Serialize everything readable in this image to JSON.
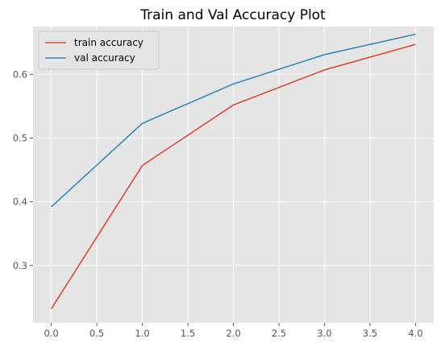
{
  "chart_data": {
    "type": "line",
    "title": "Train and Val Accuracy Plot",
    "xlabel": "",
    "ylabel": "",
    "x": [
      0,
      1,
      2,
      3,
      4
    ],
    "xlim": [
      -0.2,
      4.2
    ],
    "ylim": [
      0.21,
      0.675
    ],
    "xticks": [
      0.0,
      0.5,
      1.0,
      1.5,
      2.0,
      2.5,
      3.0,
      3.5,
      4.0
    ],
    "xtick_labels": [
      "0.0",
      "0.5",
      "1.0",
      "1.5",
      "2.0",
      "2.5",
      "3.0",
      "3.5",
      "4.0"
    ],
    "yticks": [
      0.3,
      0.4,
      0.5,
      0.6
    ],
    "ytick_labels": [
      "0.3",
      "0.4",
      "0.5",
      "0.6"
    ],
    "grid": true,
    "legend_position": "upper-left",
    "series": [
      {
        "name": "train accuracy",
        "color": "#E24A33",
        "values": [
          0.232,
          0.457,
          0.552,
          0.607,
          0.647
        ]
      },
      {
        "name": "val accuracy",
        "color": "#348ABD",
        "values": [
          0.392,
          0.523,
          0.585,
          0.631,
          0.663
        ]
      }
    ],
    "style": {
      "plot_background": "#E5E5E5",
      "grid_color": "#FFFFFF"
    }
  }
}
